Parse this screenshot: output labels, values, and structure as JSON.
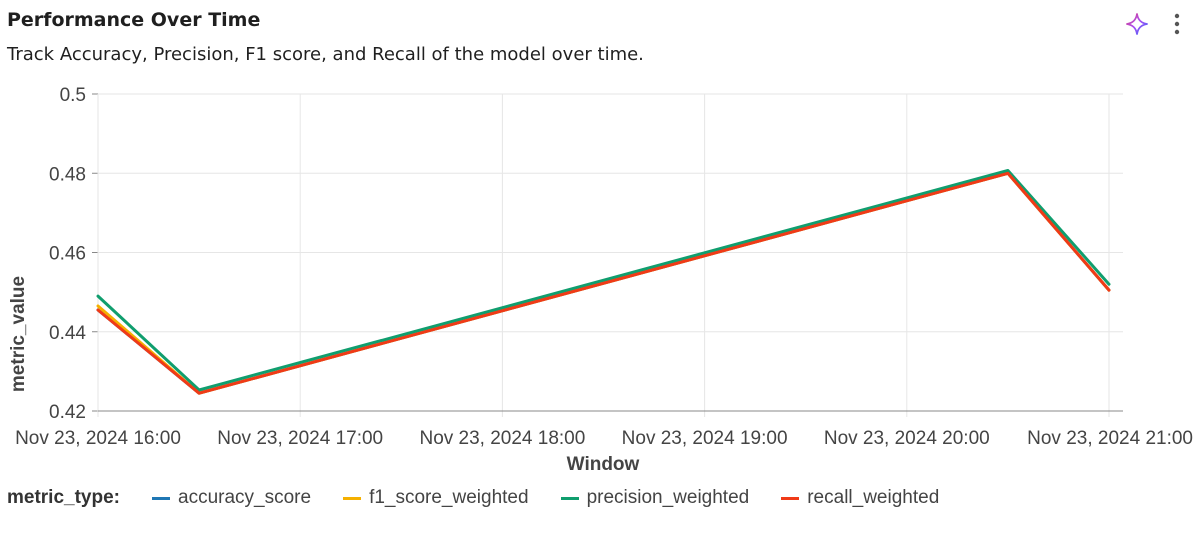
{
  "header": {
    "title": "Performance Over Time",
    "subtitle": "Track Accuracy, Precision, F1 score, and Recall of the model over time.",
    "ai_icon": "sparkle-icon",
    "menu_icon": "kebab-menu-icon"
  },
  "colors": {
    "grid": "#e6e6e6",
    "axis": "#888888",
    "tick_text": "#444444"
  },
  "chart_data": {
    "type": "line",
    "title": "",
    "xlabel": "Window",
    "ylabel": "metric_value",
    "x_tick_labels": [
      "Nov 23, 2024 16:00",
      "Nov 23, 2024 17:00",
      "Nov 23, 2024 18:00",
      "Nov 23, 2024 19:00",
      "Nov 23, 2024 20:00",
      "Nov 23, 2024 21:00"
    ],
    "x_tick_values": [
      "2024-11-23 16:00",
      "2024-11-23 17:00",
      "2024-11-23 18:00",
      "2024-11-23 19:00",
      "2024-11-23 20:00",
      "2024-11-23 21:00"
    ],
    "xlim": [
      "2024-11-23 16:00",
      "2024-11-23 21:00"
    ],
    "x": [
      "2024-11-23 16:00",
      "2024-11-23 16:30",
      "2024-11-23 20:30",
      "2024-11-23 21:00"
    ],
    "ylim": [
      0.42,
      0.5
    ],
    "y_ticks": [
      0.42,
      0.44,
      0.46,
      0.48,
      0.5
    ],
    "grid": true,
    "legend": {
      "title": "metric_type:",
      "placement": "bottom-left"
    },
    "series": [
      {
        "name": "accuracy_score",
        "color": "#1f77b4",
        "values": [
          0.4455,
          0.4245,
          0.48,
          0.4505
        ]
      },
      {
        "name": "f1_score_weighted",
        "color": "#f5b000",
        "values": [
          0.4465,
          0.4245,
          0.48,
          0.4505
        ]
      },
      {
        "name": "precision_weighted",
        "color": "#109e6e",
        "values": [
          0.449,
          0.4253,
          0.4807,
          0.452
        ]
      },
      {
        "name": "recall_weighted",
        "color": "#f03a17",
        "values": [
          0.4455,
          0.4245,
          0.48,
          0.4505
        ]
      }
    ]
  }
}
